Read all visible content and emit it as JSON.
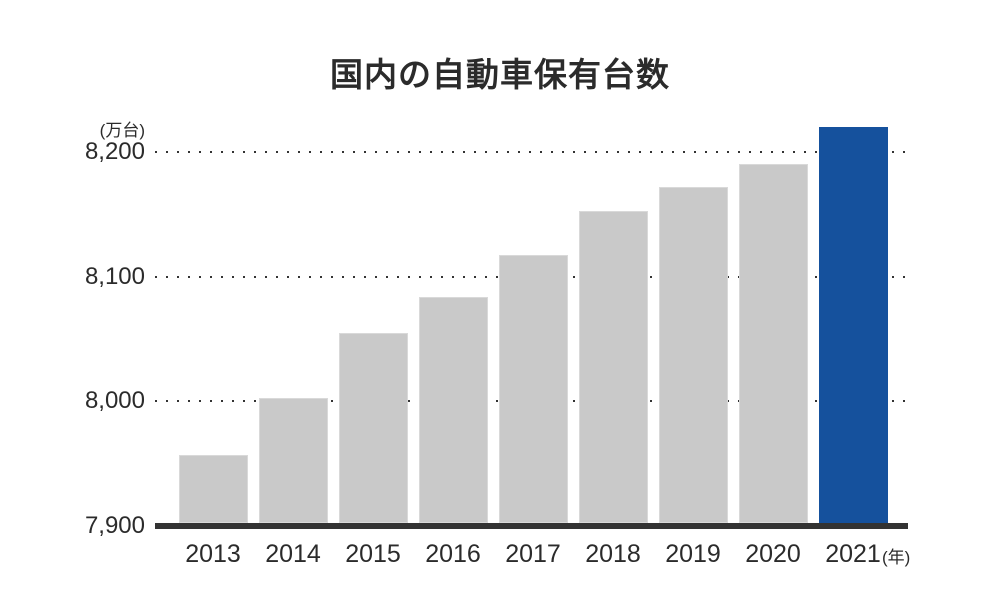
{
  "chart_data": {
    "type": "bar",
    "title": "国内の自動車保有台数",
    "unit_label": "(万台)",
    "x_axis_suffix": "(年)",
    "categories": [
      "2013",
      "2014",
      "2015",
      "2016",
      "2017",
      "2018",
      "2019",
      "2020",
      "2021"
    ],
    "values": [
      7957,
      8003,
      8055,
      8084,
      8117,
      8153,
      8172,
      8190,
      8220
    ],
    "yticks": [
      7900,
      8000,
      8100,
      8200
    ],
    "ytick_labels": [
      "7,900",
      "8,000",
      "8,100",
      "8,200"
    ],
    "ylim": [
      7900,
      8240
    ],
    "xlabel": "",
    "ylabel": "万台",
    "legend": "none",
    "grid": "horizontal-dotted",
    "highlight_index": 8,
    "colors": {
      "bar": "#c9c9c9",
      "highlight_bar": "#15519d",
      "axis": "#333333",
      "text": "#2b2b2b"
    }
  }
}
